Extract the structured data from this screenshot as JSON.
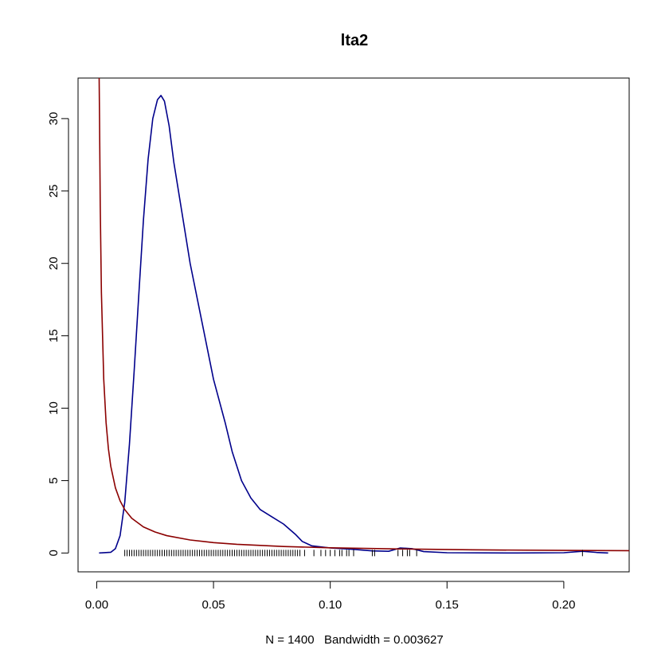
{
  "chart_data": {
    "type": "line",
    "title": "lta2",
    "xlabel": "N = 1400   Bandwidth = 0.003627",
    "ylabel": "",
    "xlim": [
      -0.008,
      0.228
    ],
    "ylim": [
      -1.3,
      32.8
    ],
    "x_ticks": [
      0.0,
      0.05,
      0.1,
      0.15,
      0.2
    ],
    "x_tick_labels": [
      "0.00",
      "0.05",
      "0.10",
      "0.15",
      "0.20"
    ],
    "y_ticks": [
      0,
      5,
      10,
      15,
      20,
      25,
      30
    ],
    "y_tick_labels": [
      "0",
      "5",
      "10",
      "15",
      "20",
      "25",
      "30"
    ],
    "grid": false,
    "series": [
      {
        "color": "#00008B",
        "points": [
          [
            0.001,
            0.0
          ],
          [
            0.006,
            0.05
          ],
          [
            0.008,
            0.3
          ],
          [
            0.01,
            1.2
          ],
          [
            0.012,
            3.5
          ],
          [
            0.014,
            7.5
          ],
          [
            0.016,
            12.5
          ],
          [
            0.018,
            17.8
          ],
          [
            0.02,
            23.0
          ],
          [
            0.022,
            27.2
          ],
          [
            0.024,
            30.0
          ],
          [
            0.026,
            31.3
          ],
          [
            0.0275,
            31.6
          ],
          [
            0.029,
            31.2
          ],
          [
            0.031,
            29.5
          ],
          [
            0.033,
            27.0
          ],
          [
            0.036,
            24.0
          ],
          [
            0.04,
            20.0
          ],
          [
            0.045,
            16.0
          ],
          [
            0.05,
            12.0
          ],
          [
            0.055,
            9.0
          ],
          [
            0.058,
            7.0
          ],
          [
            0.062,
            5.0
          ],
          [
            0.066,
            3.8
          ],
          [
            0.07,
            3.0
          ],
          [
            0.075,
            2.5
          ],
          [
            0.08,
            2.0
          ],
          [
            0.085,
            1.3
          ],
          [
            0.088,
            0.8
          ],
          [
            0.092,
            0.5
          ],
          [
            0.1,
            0.35
          ],
          [
            0.11,
            0.25
          ],
          [
            0.118,
            0.15
          ],
          [
            0.125,
            0.12
          ],
          [
            0.13,
            0.35
          ],
          [
            0.135,
            0.3
          ],
          [
            0.14,
            0.1
          ],
          [
            0.15,
            0.02
          ],
          [
            0.18,
            0.0
          ],
          [
            0.2,
            0.02
          ],
          [
            0.208,
            0.12
          ],
          [
            0.214,
            0.04
          ],
          [
            0.219,
            0.0
          ]
        ]
      },
      {
        "color": "#8B0000",
        "points": [
          [
            0.0009,
            35.0
          ],
          [
            0.0012,
            30.0
          ],
          [
            0.0015,
            24.0
          ],
          [
            0.002,
            18.0
          ],
          [
            0.003,
            12.0
          ],
          [
            0.004,
            9.0
          ],
          [
            0.005,
            7.2
          ],
          [
            0.006,
            6.0
          ],
          [
            0.008,
            4.5
          ],
          [
            0.01,
            3.6
          ],
          [
            0.012,
            3.0
          ],
          [
            0.015,
            2.4
          ],
          [
            0.02,
            1.8
          ],
          [
            0.025,
            1.45
          ],
          [
            0.03,
            1.2
          ],
          [
            0.04,
            0.9
          ],
          [
            0.05,
            0.72
          ],
          [
            0.06,
            0.6
          ],
          [
            0.08,
            0.45
          ],
          [
            0.1,
            0.36
          ],
          [
            0.13,
            0.28
          ],
          [
            0.16,
            0.22
          ],
          [
            0.2,
            0.18
          ],
          [
            0.228,
            0.16
          ]
        ]
      }
    ],
    "rug": [
      0.012,
      0.013,
      0.014,
      0.015,
      0.016,
      0.017,
      0.018,
      0.019,
      0.02,
      0.021,
      0.022,
      0.023,
      0.024,
      0.025,
      0.026,
      0.027,
      0.028,
      0.029,
      0.03,
      0.031,
      0.032,
      0.033,
      0.034,
      0.035,
      0.036,
      0.037,
      0.038,
      0.039,
      0.04,
      0.041,
      0.042,
      0.043,
      0.044,
      0.045,
      0.046,
      0.047,
      0.048,
      0.049,
      0.05,
      0.051,
      0.052,
      0.053,
      0.054,
      0.055,
      0.056,
      0.057,
      0.058,
      0.059,
      0.06,
      0.061,
      0.062,
      0.063,
      0.064,
      0.065,
      0.066,
      0.067,
      0.068,
      0.069,
      0.07,
      0.071,
      0.072,
      0.073,
      0.074,
      0.075,
      0.076,
      0.077,
      0.078,
      0.079,
      0.08,
      0.081,
      0.082,
      0.083,
      0.084,
      0.085,
      0.086,
      0.087,
      0.089,
      0.093,
      0.096,
      0.098,
      0.1,
      0.102,
      0.104,
      0.105,
      0.107,
      0.108,
      0.11,
      0.118,
      0.119,
      0.129,
      0.131,
      0.133,
      0.134,
      0.137,
      0.208
    ],
    "legend": "none"
  }
}
